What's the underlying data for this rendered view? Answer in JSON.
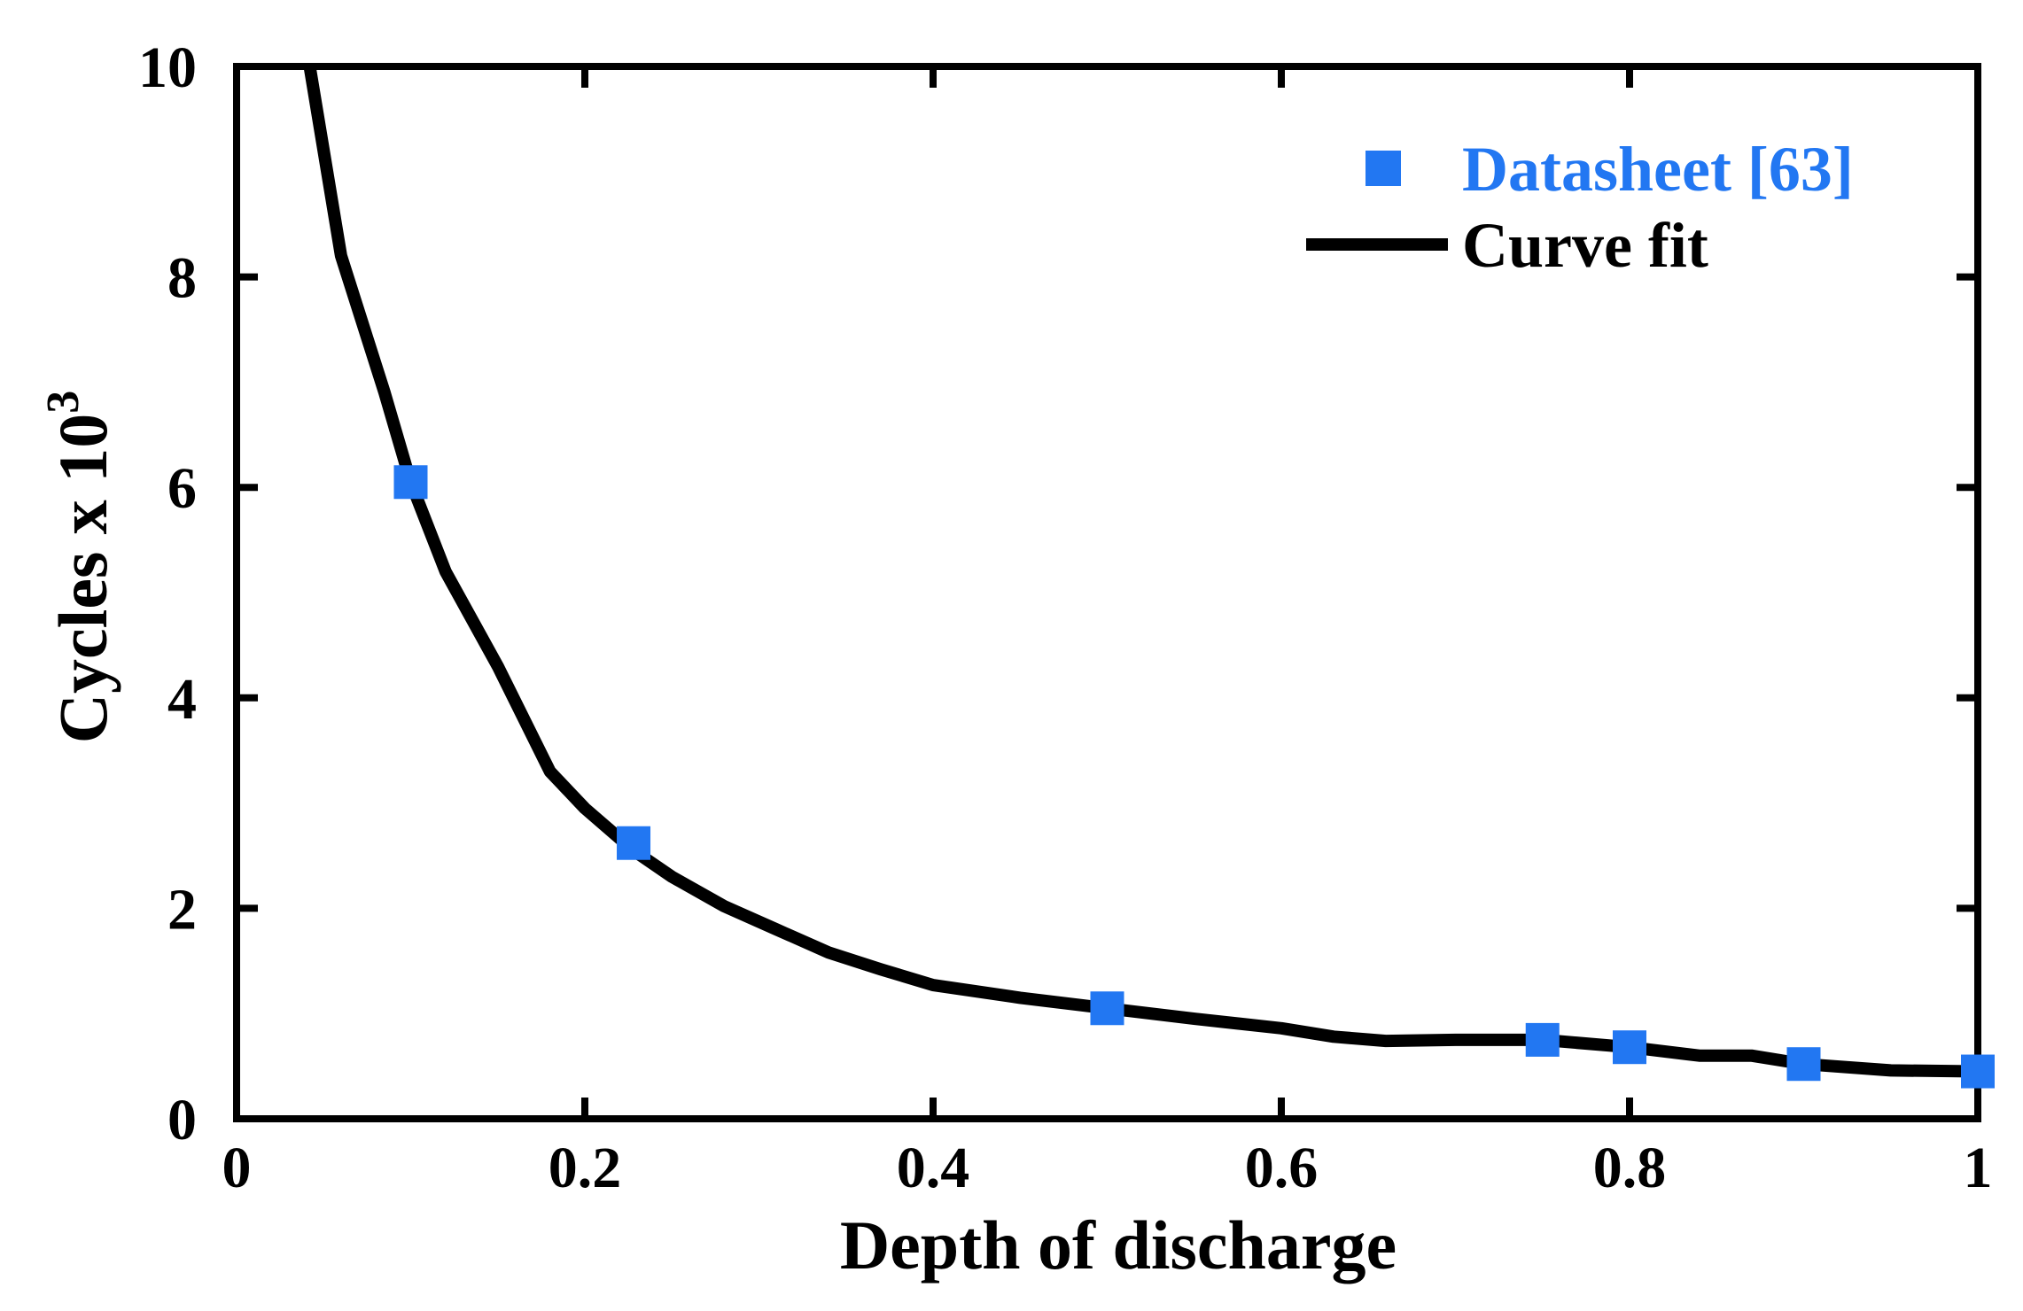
{
  "chart_data": {
    "type": "scatter",
    "title": "",
    "xlabel": "Depth of discharge",
    "ylabel_main": "Cycles x 10",
    "ylabel_sup": "3",
    "xlim": [
      0,
      1
    ],
    "ylim": [
      0,
      10
    ],
    "xticks": [
      0,
      0.2,
      0.4,
      0.6,
      0.8,
      1
    ],
    "xtick_labels": [
      "0",
      "0.2",
      "0.4",
      "0.6",
      "0.8",
      "1"
    ],
    "yticks": [
      0,
      2,
      4,
      6,
      8,
      10
    ],
    "ytick_labels": [
      "0",
      "2",
      "4",
      "6",
      "8",
      "10"
    ],
    "grid": false,
    "legend_position": "top-right",
    "series": [
      {
        "name": "Datasheet [63]",
        "kind": "markers",
        "marker": "square",
        "color": "#2277f2",
        "x": [
          0.1,
          0.228,
          0.5,
          0.75,
          0.8,
          0.9,
          1.0
        ],
        "y": [
          6.05,
          2.62,
          1.05,
          0.75,
          0.68,
          0.52,
          0.45
        ]
      },
      {
        "name": "Curve fit",
        "kind": "line",
        "color": "#000000",
        "x": [
          0.042,
          0.06,
          0.085,
          0.1,
          0.12,
          0.15,
          0.18,
          0.2,
          0.228,
          0.25,
          0.28,
          0.31,
          0.34,
          0.37,
          0.4,
          0.45,
          0.5,
          0.55,
          0.6,
          0.63,
          0.66,
          0.7,
          0.75,
          0.8,
          0.84,
          0.87,
          0.9,
          0.95,
          1.0
        ],
        "y": [
          10.0,
          8.2,
          6.9,
          6.05,
          5.2,
          4.3,
          3.3,
          2.95,
          2.55,
          2.3,
          2.02,
          1.8,
          1.58,
          1.42,
          1.27,
          1.15,
          1.05,
          0.95,
          0.86,
          0.78,
          0.74,
          0.75,
          0.75,
          0.68,
          0.6,
          0.6,
          0.52,
          0.46,
          0.45
        ]
      }
    ]
  }
}
